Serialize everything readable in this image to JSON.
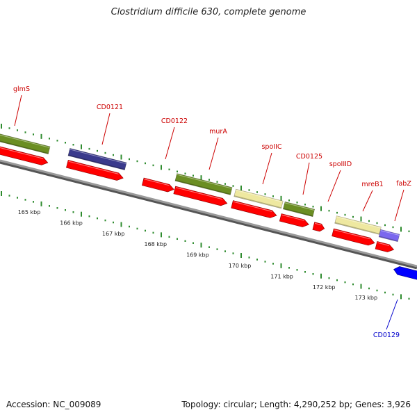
{
  "title": "Clostridium difficile 630, complete genome",
  "footer": {
    "accession": "Accession: NC_009089",
    "summary": "Topology: circular; Length: 4,290,252 bp; Genes: 3,926"
  },
  "colors": {
    "feature_red": "#ff0000",
    "gene_green": "#6b8e23",
    "gene_navy": "#3a3a8c",
    "gene_tan": "#eee8a0",
    "gene_lavender": "#7b68ee",
    "gene_blue": "#0000ff",
    "label_red": "#cc0000",
    "label_blue": "#0000cc",
    "tick_green": "#2e8b2e",
    "backbone": "#808080"
  },
  "kbp_ticks": [
    "165 kbp",
    "166 kbp",
    "167 kbp",
    "168 kbp",
    "169 kbp",
    "170 kbp",
    "171 kbp",
    "172 kbp",
    "173 kbp"
  ],
  "gene_labels": [
    {
      "name": "glmS",
      "strand": "forward"
    },
    {
      "name": "CD0121",
      "strand": "forward"
    },
    {
      "name": "CD0122",
      "strand": "forward"
    },
    {
      "name": "murA",
      "strand": "forward"
    },
    {
      "name": "spoIIC",
      "strand": "forward"
    },
    {
      "name": "CD0125",
      "strand": "forward"
    },
    {
      "name": "spoIIID",
      "strand": "forward"
    },
    {
      "name": "mreB1",
      "strand": "forward"
    },
    {
      "name": "fabZ",
      "strand": "forward"
    },
    {
      "name": "CD0129",
      "strand": "reverse"
    }
  ]
}
